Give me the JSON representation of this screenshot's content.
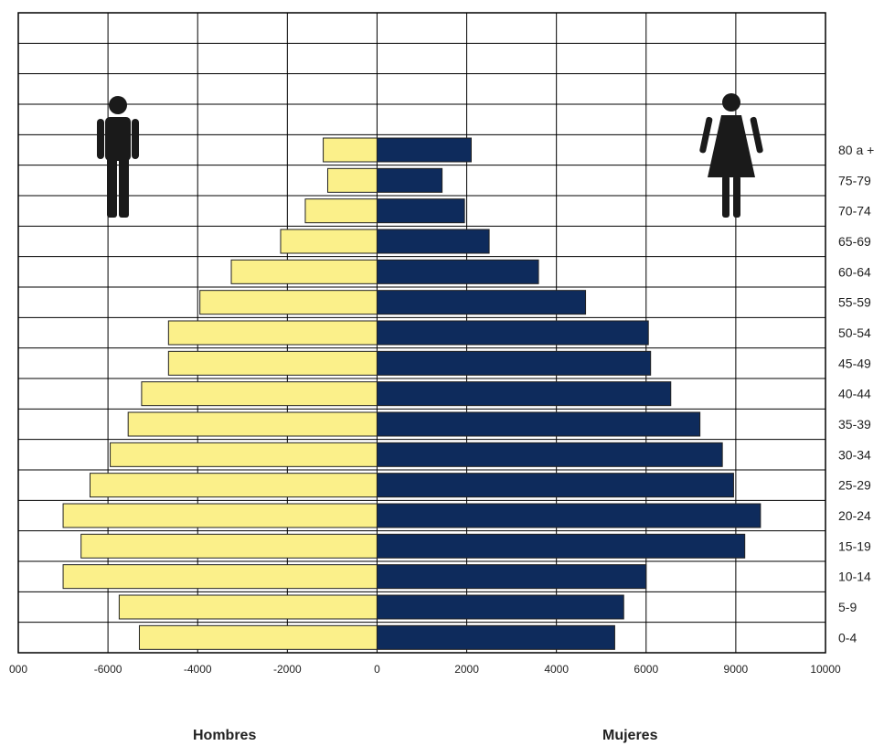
{
  "chart_data": {
    "type": "bar",
    "orientation": "horizontal",
    "subtype": "population-pyramid",
    "categories": [
      "0-4",
      "5-9",
      "10-14",
      "15-19",
      "20-24",
      "25-29",
      "30-34",
      "35-39",
      "40-44",
      "45-49",
      "50-54",
      "55-59",
      "60-64",
      "65-69",
      "70-74",
      "75-79",
      "80 a +"
    ],
    "series": [
      {
        "name": "Hombres",
        "color": "#fbf08a",
        "values": [
          -5300,
          -5750,
          -7000,
          -6600,
          -7000,
          -6400,
          -5950,
          -5550,
          -5250,
          -4650,
          -4650,
          -3950,
          -3250,
          -2150,
          -1600,
          -1100,
          -1200
        ]
      },
      {
        "name": "Mujeres",
        "color": "#0e2b5c",
        "values": [
          5300,
          5500,
          6000,
          8200,
          8550,
          7950,
          7700,
          7200,
          6550,
          6100,
          6050,
          4650,
          3600,
          2500,
          1950,
          1450,
          2100
        ]
      }
    ],
    "xlim": [
      -8000,
      10000
    ],
    "tick_labels": [
      "000",
      "-6000",
      "-4000",
      "-2000",
      "0",
      "2000",
      "4000",
      "6000",
      "9000",
      "10000"
    ],
    "grid": true,
    "icons": {
      "left": "male-figure-icon",
      "right": "female-figure-icon"
    }
  },
  "labels": {
    "men": "Hombres",
    "women": "Mujeres"
  }
}
